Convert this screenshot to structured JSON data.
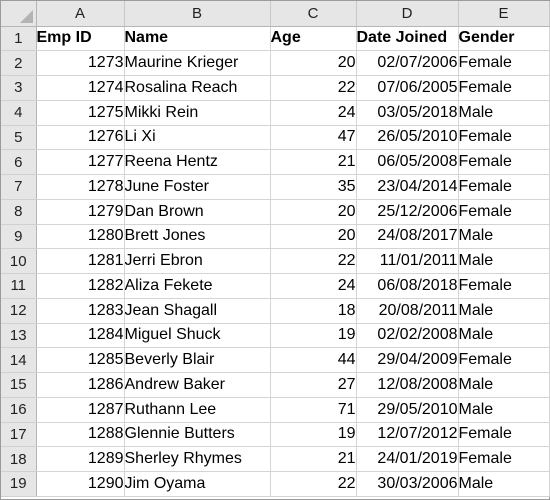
{
  "columns": [
    "A",
    "B",
    "C",
    "D",
    "E"
  ],
  "rows": [
    {
      "row": "1",
      "cells": [
        "Emp ID",
        "Name",
        "Age",
        "Date Joined",
        "Gender"
      ]
    },
    {
      "row": "2",
      "cells": [
        "1273",
        "Maurine Krieger",
        "20",
        "02/07/2006",
        "Female"
      ]
    },
    {
      "row": "3",
      "cells": [
        "1274",
        "Rosalina Reach",
        "22",
        "07/06/2005",
        "Female"
      ]
    },
    {
      "row": "4",
      "cells": [
        "1275",
        "Mikki Rein",
        "24",
        "03/05/2018",
        "Male"
      ]
    },
    {
      "row": "5",
      "cells": [
        "1276",
        "Li Xi",
        "47",
        "26/05/2010",
        "Female"
      ]
    },
    {
      "row": "6",
      "cells": [
        "1277",
        "Reena Hentz",
        "21",
        "06/05/2008",
        "Female"
      ]
    },
    {
      "row": "7",
      "cells": [
        "1278",
        "June Foster",
        "35",
        "23/04/2014",
        "Female"
      ]
    },
    {
      "row": "8",
      "cells": [
        "1279",
        "Dan Brown",
        "20",
        "25/12/2006",
        "Female"
      ]
    },
    {
      "row": "9",
      "cells": [
        "1280",
        "Brett Jones",
        "20",
        "24/08/2017",
        "Male"
      ]
    },
    {
      "row": "10",
      "cells": [
        "1281",
        "Jerri Ebron",
        "22",
        "11/01/2011",
        "Male"
      ]
    },
    {
      "row": "11",
      "cells": [
        "1282",
        "Aliza Fekete",
        "24",
        "06/08/2018",
        "Female"
      ]
    },
    {
      "row": "12",
      "cells": [
        "1283",
        "Jean Shagall",
        "18",
        "20/08/2011",
        "Male"
      ]
    },
    {
      "row": "13",
      "cells": [
        "1284",
        "Miguel Shuck",
        "19",
        "02/02/2008",
        "Male"
      ]
    },
    {
      "row": "14",
      "cells": [
        "1285",
        "Beverly Blair",
        "44",
        "29/04/2009",
        "Female"
      ]
    },
    {
      "row": "15",
      "cells": [
        "1286",
        "Andrew Baker",
        "27",
        "12/08/2008",
        "Male"
      ]
    },
    {
      "row": "16",
      "cells": [
        "1287",
        "Ruthann Lee",
        "71",
        "29/05/2010",
        "Male"
      ]
    },
    {
      "row": "17",
      "cells": [
        "1288",
        "Glennie Butters",
        "19",
        "12/07/2012",
        "Female"
      ]
    },
    {
      "row": "18",
      "cells": [
        "1289",
        "Sherley Rhymes",
        "21",
        "24/01/2019",
        "Female"
      ]
    },
    {
      "row": "19",
      "cells": [
        "1290",
        "Jim Oyama",
        "22",
        "30/03/2006",
        "Male"
      ]
    }
  ]
}
